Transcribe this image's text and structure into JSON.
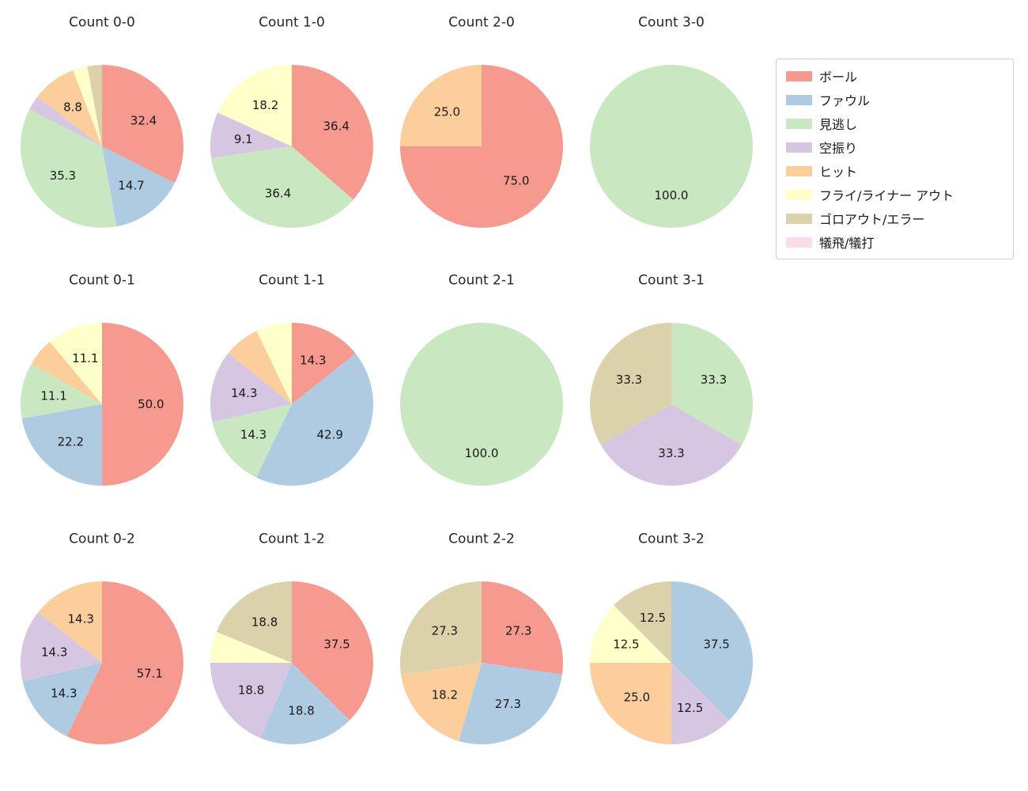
{
  "figure": {
    "background": "#ffffff",
    "text_color": "#262626"
  },
  "legend": {
    "position": "top-right",
    "entries": [
      {
        "label": "ボール",
        "color": "#f69a8f"
      },
      {
        "label": "ファウル",
        "color": "#aecbe2"
      },
      {
        "label": "見逃し",
        "color": "#c9e8c1"
      },
      {
        "label": "空振り",
        "color": "#d6c6e1"
      },
      {
        "label": "ヒット",
        "color": "#fbce9b"
      },
      {
        "label": "フライ/ライナー アウト",
        "color": "#ffffca"
      },
      {
        "label": "ゴロアウト/エラー",
        "color": "#dbd1aa"
      },
      {
        "label": "犠飛/犠打",
        "color": "#fbdcea"
      }
    ]
  },
  "chart_data": [
    {
      "type": "pie",
      "title": "Count 0-0",
      "start_angle_deg": 90,
      "direction": "clockwise",
      "label_radius_ratio": 0.6,
      "slices": [
        {
          "category": "ボール",
          "value": 32.4,
          "label": "32.4"
        },
        {
          "category": "ファウル",
          "value": 14.7,
          "label": "14.7"
        },
        {
          "category": "見逃し",
          "value": 35.3,
          "label": "35.3"
        },
        {
          "category": "空振り",
          "value": 2.9,
          "label": ""
        },
        {
          "category": "ヒット",
          "value": 8.8,
          "label": "8.8"
        },
        {
          "category": "フライ/ライナー アウト",
          "value": 2.9,
          "label": ""
        },
        {
          "category": "ゴロアウト/エラー",
          "value": 2.9,
          "label": ""
        }
      ]
    },
    {
      "type": "pie",
      "title": "Count 1-0",
      "start_angle_deg": 90,
      "direction": "clockwise",
      "label_radius_ratio": 0.6,
      "slices": [
        {
          "category": "ボール",
          "value": 36.4,
          "label": "36.4"
        },
        {
          "category": "見逃し",
          "value": 36.4,
          "label": "36.4"
        },
        {
          "category": "空振り",
          "value": 9.1,
          "label": "9.1"
        },
        {
          "category": "フライ/ライナー アウト",
          "value": 18.2,
          "label": "18.2"
        }
      ]
    },
    {
      "type": "pie",
      "title": "Count 2-0",
      "start_angle_deg": 90,
      "direction": "clockwise",
      "label_radius_ratio": 0.6,
      "slices": [
        {
          "category": "ボール",
          "value": 75.0,
          "label": "75.0"
        },
        {
          "category": "ヒット",
          "value": 25.0,
          "label": "25.0"
        }
      ]
    },
    {
      "type": "pie",
      "title": "Count 3-0",
      "start_angle_deg": 90,
      "direction": "clockwise",
      "label_radius_ratio": 0.6,
      "slices": [
        {
          "category": "見逃し",
          "value": 100.0,
          "label": "100.0"
        }
      ]
    },
    {
      "type": "pie",
      "title": "Count 0-1",
      "start_angle_deg": 90,
      "direction": "clockwise",
      "label_radius_ratio": 0.6,
      "slices": [
        {
          "category": "ボール",
          "value": 50.0,
          "label": "50.0"
        },
        {
          "category": "ファウル",
          "value": 22.2,
          "label": "22.2"
        },
        {
          "category": "見逃し",
          "value": 11.1,
          "label": "11.1"
        },
        {
          "category": "ヒット",
          "value": 5.6,
          "label": ""
        },
        {
          "category": "フライ/ライナー アウト",
          "value": 11.1,
          "label": "11.1"
        }
      ]
    },
    {
      "type": "pie",
      "title": "Count 1-1",
      "start_angle_deg": 90,
      "direction": "clockwise",
      "label_radius_ratio": 0.6,
      "slices": [
        {
          "category": "ボール",
          "value": 14.3,
          "label": "14.3"
        },
        {
          "category": "ファウル",
          "value": 42.9,
          "label": "42.9"
        },
        {
          "category": "見逃し",
          "value": 14.3,
          "label": "14.3"
        },
        {
          "category": "空振り",
          "value": 14.3,
          "label": "14.3"
        },
        {
          "category": "ヒット",
          "value": 7.1,
          "label": ""
        },
        {
          "category": "フライ/ライナー アウト",
          "value": 7.1,
          "label": ""
        }
      ]
    },
    {
      "type": "pie",
      "title": "Count 2-1",
      "start_angle_deg": 90,
      "direction": "clockwise",
      "label_radius_ratio": 0.6,
      "slices": [
        {
          "category": "見逃し",
          "value": 100.0,
          "label": "100.0"
        }
      ]
    },
    {
      "type": "pie",
      "title": "Count 3-1",
      "start_angle_deg": 90,
      "direction": "clockwise",
      "label_radius_ratio": 0.6,
      "slices": [
        {
          "category": "見逃し",
          "value": 33.3,
          "label": "33.3"
        },
        {
          "category": "空振り",
          "value": 33.3,
          "label": "33.3"
        },
        {
          "category": "ゴロアウト/エラー",
          "value": 33.3,
          "label": "33.3"
        }
      ]
    },
    {
      "type": "pie",
      "title": "Count 0-2",
      "start_angle_deg": 90,
      "direction": "clockwise",
      "label_radius_ratio": 0.6,
      "slices": [
        {
          "category": "ボール",
          "value": 57.1,
          "label": "57.1"
        },
        {
          "category": "ファウル",
          "value": 14.3,
          "label": "14.3"
        },
        {
          "category": "空振り",
          "value": 14.3,
          "label": "14.3"
        },
        {
          "category": "ヒット",
          "value": 14.3,
          "label": "14.3"
        }
      ]
    },
    {
      "type": "pie",
      "title": "Count 1-2",
      "start_angle_deg": 90,
      "direction": "clockwise",
      "label_radius_ratio": 0.6,
      "slices": [
        {
          "category": "ボール",
          "value": 37.5,
          "label": "37.5"
        },
        {
          "category": "ファウル",
          "value": 18.8,
          "label": "18.8"
        },
        {
          "category": "空振り",
          "value": 18.8,
          "label": "18.8"
        },
        {
          "category": "フライ/ライナー アウト",
          "value": 6.2,
          "label": ""
        },
        {
          "category": "ゴロアウト/エラー",
          "value": 18.8,
          "label": "18.8"
        }
      ]
    },
    {
      "type": "pie",
      "title": "Count 2-2",
      "start_angle_deg": 90,
      "direction": "clockwise",
      "label_radius_ratio": 0.6,
      "slices": [
        {
          "category": "ボール",
          "value": 27.3,
          "label": "27.3"
        },
        {
          "category": "ファウル",
          "value": 27.3,
          "label": "27.3"
        },
        {
          "category": "ヒット",
          "value": 18.2,
          "label": "18.2"
        },
        {
          "category": "ゴロアウト/エラー",
          "value": 27.3,
          "label": "27.3"
        }
      ]
    },
    {
      "type": "pie",
      "title": "Count 3-2",
      "start_angle_deg": 90,
      "direction": "clockwise",
      "label_radius_ratio": 0.6,
      "slices": [
        {
          "category": "ファウル",
          "value": 37.5,
          "label": "37.5"
        },
        {
          "category": "空振り",
          "value": 12.5,
          "label": "12.5"
        },
        {
          "category": "ヒット",
          "value": 25.0,
          "label": "25.0"
        },
        {
          "category": "フライ/ライナー アウト",
          "value": 12.5,
          "label": "12.5"
        },
        {
          "category": "ゴロアウト/エラー",
          "value": 12.5,
          "label": "12.5"
        }
      ]
    }
  ]
}
